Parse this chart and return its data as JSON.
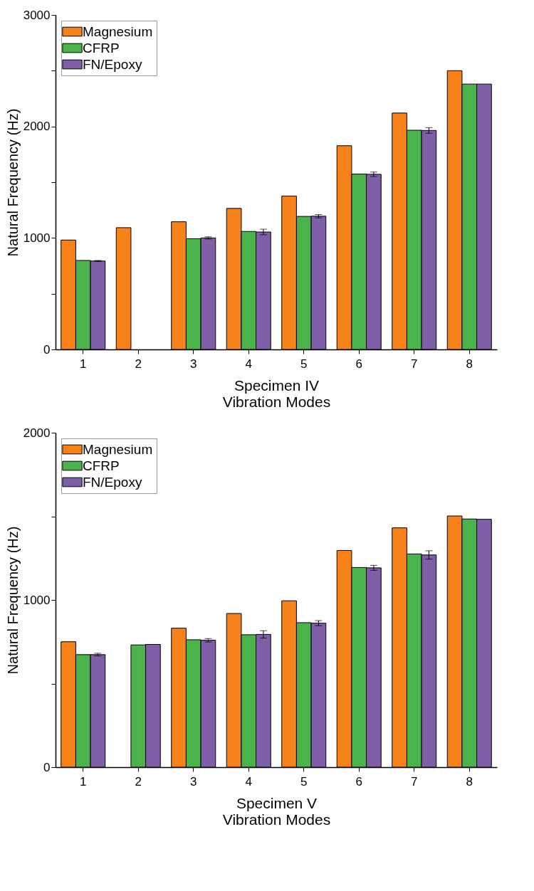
{
  "chart_data": [
    {
      "type": "bar",
      "xlabel": "Specimen IV\nVibration Modes",
      "ylabel": "Natural Frequency (Hz)",
      "categories": [
        "1",
        "2",
        "3",
        "4",
        "5",
        "6",
        "7",
        "8"
      ],
      "ylim": [
        0,
        3000
      ],
      "yticks": [
        0,
        {
          "value": 500,
          "label": null
        },
        1000,
        {
          "value": 1500,
          "label": null
        },
        2000,
        {
          "value": 2500,
          "label": null
        },
        3000
      ],
      "legend": "top left",
      "series": [
        {
          "name": "Magnesium",
          "color": "#f7821a",
          "values": [
            981,
            1092,
            1145,
            1265,
            1376,
            1827,
            2120,
            2500
          ]
        },
        {
          "name": "CFRP",
          "color": "#4bb34b",
          "values": [
            798,
            null,
            993,
            1058,
            1193,
            1573,
            1966,
            2380
          ]
        },
        {
          "name": "FN/Epoxy",
          "color": "#7f5fa8",
          "values": [
            793,
            null,
            1000,
            1053,
            1195,
            1571,
            1964,
            2380
          ],
          "errors": [
            5,
            null,
            10,
            25,
            15,
            20,
            25,
            null
          ]
        }
      ]
    },
    {
      "type": "bar",
      "xlabel": "Specimen V\nVibration Modes",
      "ylabel": "Natural Frequency (Hz)",
      "categories": [
        "1",
        "2",
        "3",
        "4",
        "5",
        "6",
        "7",
        "8"
      ],
      "ylim": [
        0,
        2000
      ],
      "yticks": [
        0,
        {
          "value": 500,
          "label": null
        },
        1000,
        {
          "value": 1500,
          "label": null
        },
        2000
      ],
      "legend": "top left",
      "series": [
        {
          "name": "Magnesium",
          "color": "#f7821a",
          "values": [
            750,
            null,
            831,
            919,
            995,
            1296,
            1431,
            1502
          ]
        },
        {
          "name": "CFRP",
          "color": "#4bb34b",
          "values": [
            673,
            731,
            762,
            792,
            864,
            1194,
            1275,
            1484
          ]
        },
        {
          "name": "FN/Epoxy",
          "color": "#7f5fa8",
          "values": [
            673,
            734,
            759,
            794,
            861,
            1192,
            1269,
            1482
          ],
          "errors": [
            8,
            null,
            10,
            22,
            15,
            15,
            25,
            null
          ]
        }
      ]
    }
  ]
}
